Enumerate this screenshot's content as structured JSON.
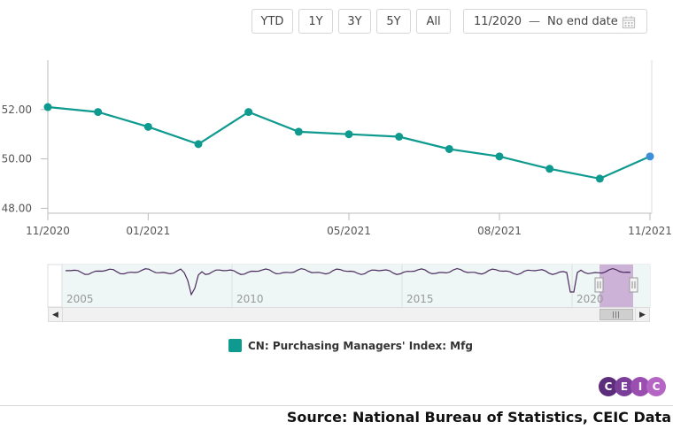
{
  "toolbar": {
    "buttons": [
      "YTD",
      "1Y",
      "3Y",
      "5Y",
      "All"
    ],
    "date_from": "11/2020",
    "date_sep": "—",
    "date_to": "No end date"
  },
  "chart_data": {
    "type": "line",
    "title": "",
    "xlabel": "",
    "ylabel": "",
    "x": [
      "11/2020",
      "12/2020",
      "01/2021",
      "02/2021",
      "03/2021",
      "04/2021",
      "05/2021",
      "06/2021",
      "07/2021",
      "08/2021",
      "09/2021",
      "10/2021",
      "11/2021"
    ],
    "x_tick_labels": [
      "11/2020",
      "01/2021",
      "05/2021",
      "08/2021",
      "11/2021"
    ],
    "y_tick_labels": [
      "48.00",
      "50.00",
      "52.00"
    ],
    "ylim": [
      47.8,
      54.0
    ],
    "grid": false,
    "series": [
      {
        "name": "CN: Purchasing Managers' Index: Mfg",
        "values": [
          52.1,
          51.9,
          51.3,
          50.6,
          51.9,
          51.1,
          51.0,
          50.9,
          50.4,
          50.1,
          49.6,
          49.2,
          50.1
        ],
        "color": "#0e9a8e",
        "last_point_color": "#3d8fd8"
      }
    ],
    "legend": "bottom-center"
  },
  "navigator": {
    "year_labels": [
      "2005",
      "2010",
      "2015",
      "2020"
    ],
    "selection_color": "#c7a6d2",
    "line_color": "#4a2a5e"
  },
  "legend": {
    "label": "CN: Purchasing Managers' Index: Mfg"
  },
  "logo": {
    "letters": [
      "C",
      "E",
      "I",
      "C"
    ]
  },
  "source": "Source: National Bureau of Statistics, CEIC Data"
}
